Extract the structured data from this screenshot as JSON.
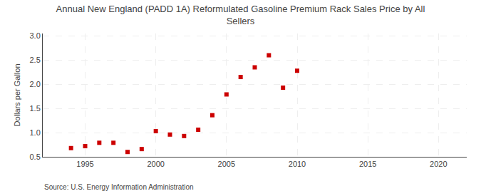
{
  "chart_data": {
    "type": "scatter",
    "title": "Annual New England (PADD 1A) Reformulated Gasoline Premium Rack Sales Price by All\nSellers",
    "ylabel": "Dollars per Gallon",
    "annotations": [
      "Source: U.S. Energy Information Administration"
    ],
    "x": [
      1994,
      1995,
      1996,
      1997,
      1998,
      1999,
      2000,
      2001,
      2002,
      2003,
      2004,
      2005,
      2006,
      2007,
      2008,
      2009,
      2010
    ],
    "values": [
      0.68,
      0.72,
      0.79,
      0.79,
      0.6,
      0.66,
      1.03,
      0.96,
      0.93,
      1.06,
      1.36,
      1.79,
      2.15,
      2.35,
      2.6,
      1.93,
      2.28
    ],
    "color": "#cc0000",
    "marker": "square",
    "xlim": [
      1992,
      2022
    ],
    "ylim": [
      0.5,
      3.05
    ],
    "xticks": [
      1995,
      2000,
      2005,
      2010,
      2015,
      2020
    ],
    "yticks": [
      0.5,
      {
        "value": 1.0,
        "label": "1.0"
      },
      1.5,
      {
        "value": 2.0,
        "label": "2.0"
      },
      2.5,
      {
        "value": 3.0,
        "label": "3.0"
      }
    ],
    "grid": true
  }
}
